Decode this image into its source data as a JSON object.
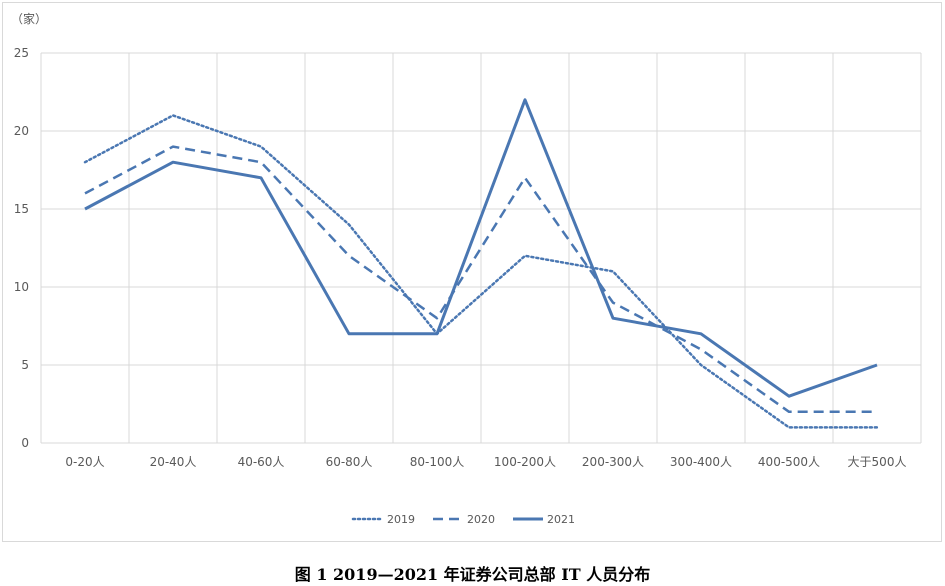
{
  "caption": "图 1 2019—2021 年证券公司总部 IT 人员分布",
  "chart_data": {
    "type": "line",
    "unit_label": "（家）",
    "categories": [
      "0-20人",
      "20-40人",
      "40-60人",
      "60-80人",
      "80-100人",
      "100-200人",
      "200-300人",
      "300-400人",
      "400-500人",
      "大于500人"
    ],
    "ylim": [
      0,
      25
    ],
    "yticks": [
      0,
      5,
      10,
      15,
      20,
      25
    ],
    "grid": true,
    "legend_position": "bottom",
    "colors": {
      "line": "#4a77b2",
      "grid": "#d9d9d9",
      "text": "#595959"
    },
    "series": [
      {
        "name": "2019",
        "style": "dotted",
        "values": [
          18,
          21,
          19,
          14,
          7,
          12,
          11,
          5,
          1,
          1
        ]
      },
      {
        "name": "2020",
        "style": "dashed",
        "values": [
          16,
          19,
          18,
          12,
          8,
          17,
          9,
          6,
          2,
          2
        ]
      },
      {
        "name": "2021",
        "style": "solid",
        "values": [
          15,
          18,
          17,
          7,
          7,
          22,
          8,
          7,
          3,
          5
        ]
      }
    ]
  }
}
